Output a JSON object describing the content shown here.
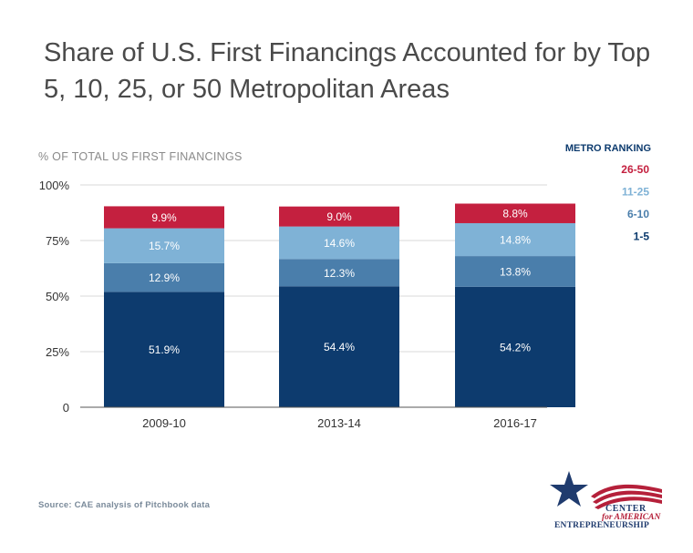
{
  "title": "Share of U.S. First Financings Accounted for by Top 5, 10, 25, or 50 Metropolitan Areas",
  "source": "Source: CAE analysis of Pitchbook data",
  "logo": {
    "line1": "CENTER",
    "line2": "for AMERICAN",
    "line3": "ENTREPRENEURSHIP"
  },
  "chart_data": {
    "type": "bar",
    "stacked": true,
    "ylabel": "% OF TOTAL US FIRST FINANCINGS",
    "ylim": [
      0,
      100
    ],
    "yticks": [
      0,
      25,
      50,
      75,
      100
    ],
    "ytick_labels": [
      "0",
      "25%",
      "50%",
      "75%",
      "100%"
    ],
    "grid": true,
    "legend_title": "METRO RANKING",
    "legend_placement": "top-right",
    "categories": [
      "2009-10",
      "2013-14",
      "2016-17"
    ],
    "series": [
      {
        "name": "1-5",
        "color": "#0d3b6e",
        "values": [
          51.9,
          54.4,
          54.2
        ],
        "labels": [
          "51.9%",
          "54.4%",
          "54.2%"
        ]
      },
      {
        "name": "6-10",
        "color": "#4a7eab",
        "values": [
          12.9,
          12.3,
          13.8
        ],
        "labels": [
          "12.9%",
          "12.3%",
          "13.8%"
        ]
      },
      {
        "name": "11-25",
        "color": "#7fb2d6",
        "values": [
          15.7,
          14.6,
          14.8
        ],
        "labels": [
          "15.7%",
          "14.6%",
          "14.8%"
        ]
      },
      {
        "name": "26-50",
        "color": "#c4203f",
        "values": [
          9.9,
          9.0,
          8.8
        ],
        "labels": [
          "9.9%",
          "9.0%",
          "8.8%"
        ]
      }
    ],
    "legend_order": [
      "26-50",
      "11-25",
      "6-10",
      "1-5"
    ]
  }
}
